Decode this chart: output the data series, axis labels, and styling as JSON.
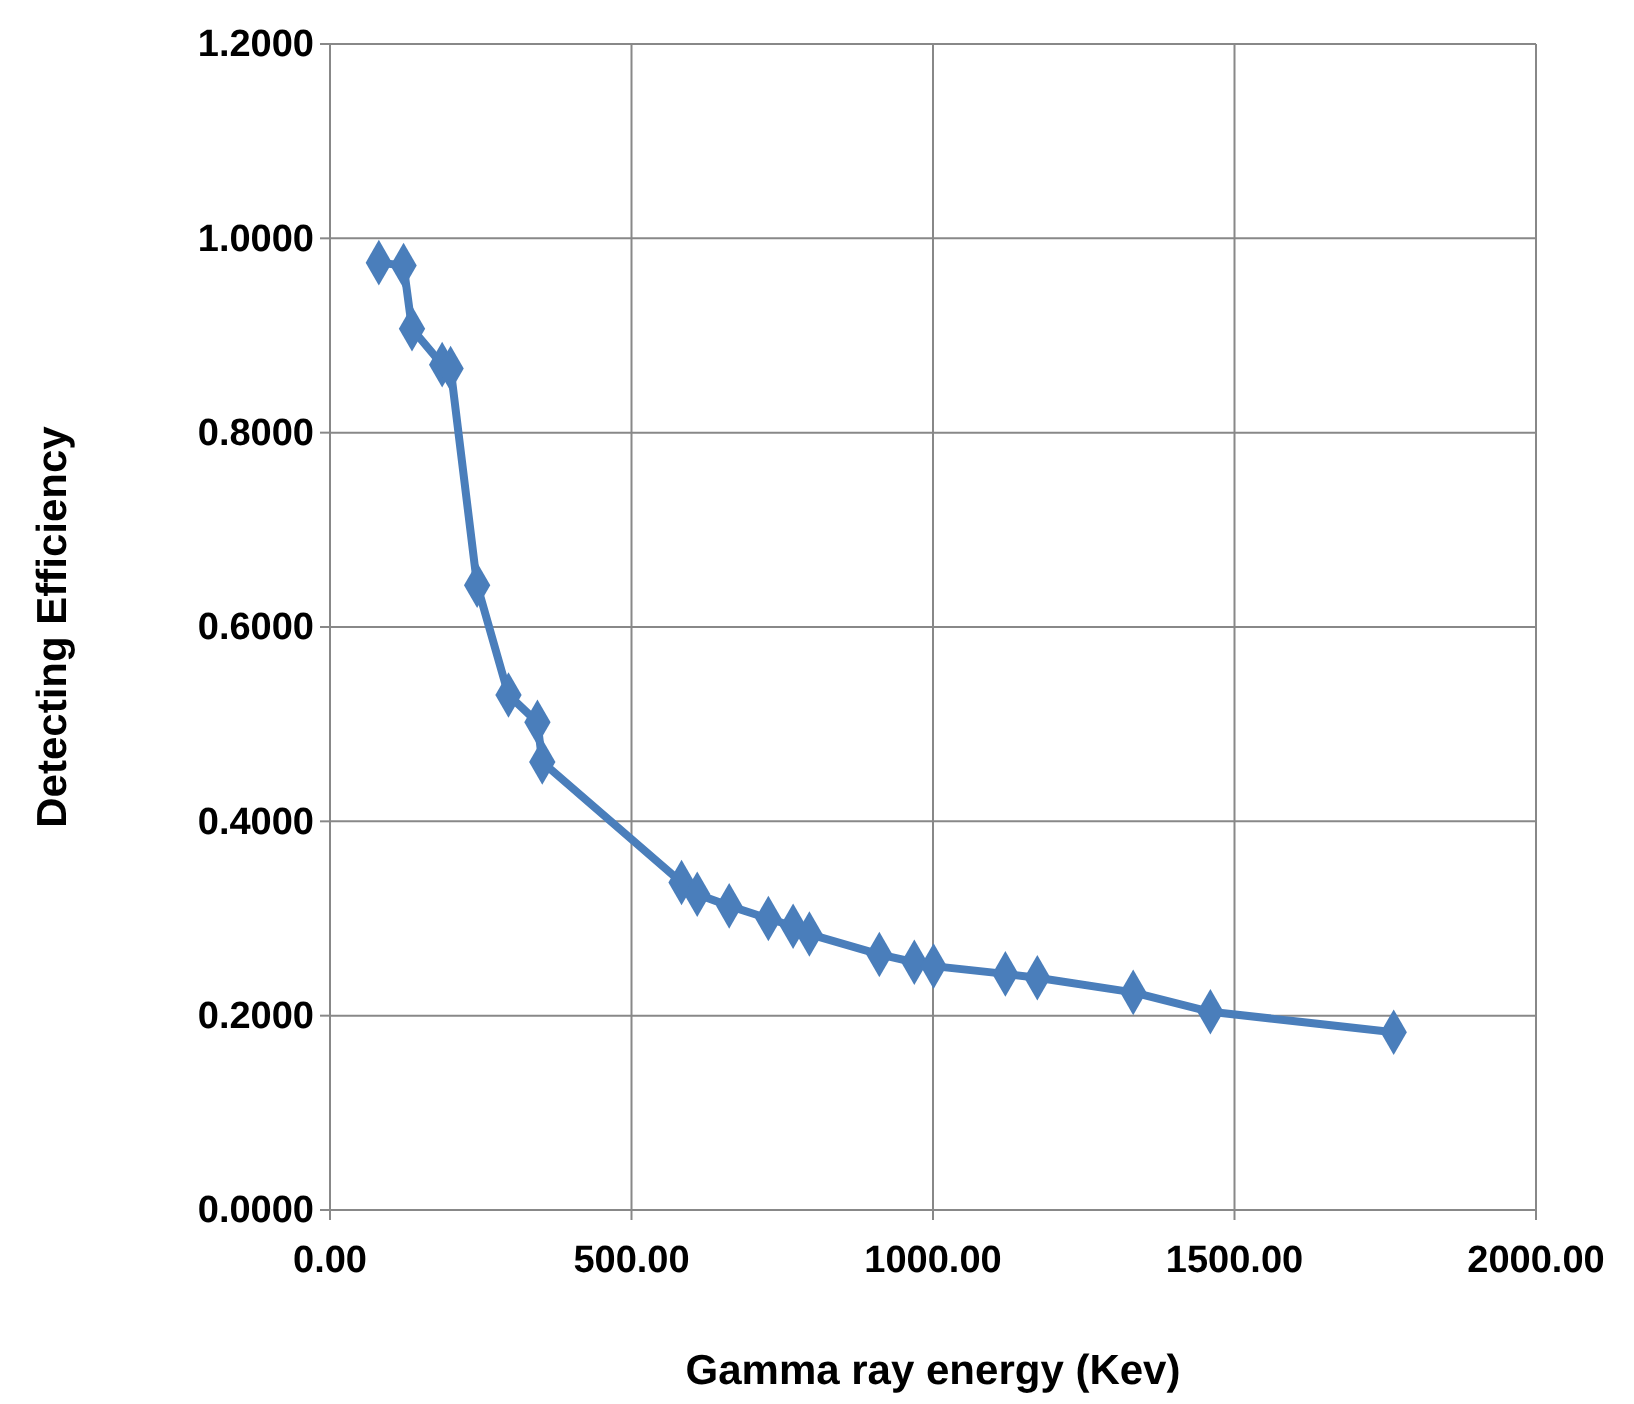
{
  "chart_data": {
    "type": "line",
    "xlabel": "Gamma ray energy (Kev)",
    "ylabel": "Detecting Efficiency",
    "x": [
      81,
      122,
      136,
      186,
      200,
      244,
      296,
      344,
      352,
      583,
      609,
      662,
      727,
      768,
      795,
      911,
      969,
      1001,
      1120,
      1173,
      1332,
      1460,
      1764
    ],
    "series": [
      {
        "color": "#4a7ebb",
        "values": [
          0.975,
          0.972,
          0.907,
          0.87,
          0.866,
          0.643,
          0.53,
          0.502,
          0.461,
          0.337,
          0.325,
          0.313,
          0.3,
          0.292,
          0.284,
          0.263,
          0.255,
          0.251,
          0.243,
          0.239,
          0.224,
          0.204,
          0.183
        ]
      }
    ],
    "xlim": [
      0,
      2000
    ],
    "xticks": [
      {
        "value": 0,
        "label": "0.00"
      },
      {
        "value": 500,
        "label": "500.00"
      },
      {
        "value": 1000,
        "label": "1000.00"
      },
      {
        "value": 1500,
        "label": "1500.00"
      },
      {
        "value": 2000,
        "label": "2000.00"
      }
    ],
    "ylim": [
      0,
      1.2
    ],
    "yticks": [
      {
        "value": 0,
        "label": "0.0000"
      },
      {
        "value": 0.2,
        "label": "0.2000"
      },
      {
        "value": 0.4,
        "label": "0.4000"
      },
      {
        "value": 0.6,
        "label": "0.6000"
      },
      {
        "value": 0.8,
        "label": "0.8000"
      },
      {
        "value": 1,
        "label": "1.0000"
      },
      {
        "value": 1.2,
        "label": "1.2000"
      }
    ],
    "grid": true,
    "marker": "diamond",
    "line_style": "solid"
  }
}
